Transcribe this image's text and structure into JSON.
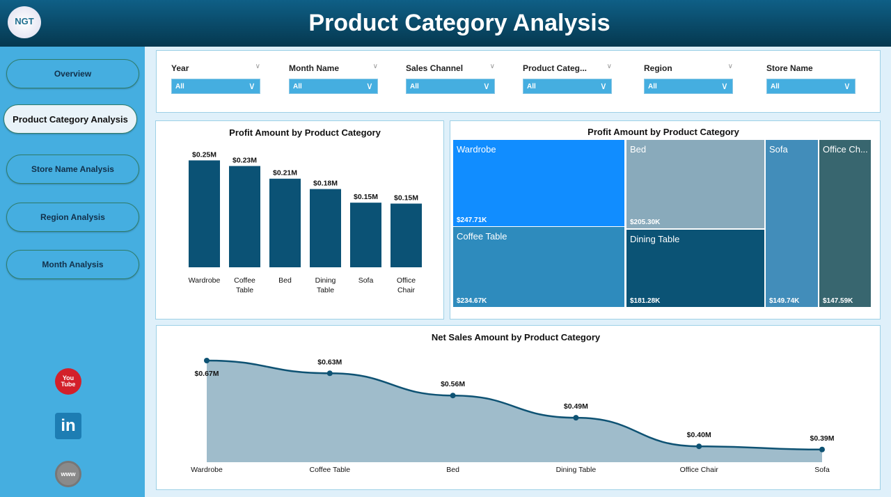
{
  "header": {
    "title": "Product Category Analysis",
    "logo_text": "NGT"
  },
  "sidebar": {
    "items": [
      {
        "label": "Overview",
        "active": false
      },
      {
        "label": "Product Category Analysis",
        "active": true
      },
      {
        "label": "Store Name Analysis",
        "active": false
      },
      {
        "label": "Region Analysis",
        "active": false
      },
      {
        "label": "Month Analysis",
        "active": false
      }
    ],
    "social": [
      {
        "icon": "youtube-icon",
        "text": "You Tube"
      },
      {
        "icon": "linkedin-icon",
        "text": "in"
      },
      {
        "icon": "globe-www-icon",
        "text": "www"
      }
    ]
  },
  "filters": [
    {
      "label": "Year",
      "value": "All"
    },
    {
      "label": "Month Name",
      "value": "All"
    },
    {
      "label": "Sales Channel",
      "value": "All"
    },
    {
      "label": "Product Categ...",
      "value": "All"
    },
    {
      "label": "Region",
      "value": "All"
    },
    {
      "label": "Store Name",
      "value": "All"
    }
  ],
  "colors": {
    "bar": "#0b5275",
    "line": "#0e5273",
    "area": "#9fbccb",
    "accent": "#45aee0"
  },
  "chart_data": [
    {
      "type": "bar",
      "title": "Profit Amount by Product Category",
      "categories": [
        "Wardrobe",
        "Coffee Table",
        "Bed",
        "Dining Table",
        "Sofa",
        "Office Chair"
      ],
      "values": [
        247.71,
        234.67,
        205.3,
        181.28,
        149.74,
        147.59
      ],
      "labels": [
        "$0.25M",
        "$0.23M",
        "$0.21M",
        "$0.18M",
        "$0.15M",
        "$0.15M"
      ],
      "unit": "K"
    },
    {
      "type": "treemap",
      "title": "Profit Amount by Product Category",
      "items": [
        {
          "name": "Wardrobe",
          "value": "$247.71K",
          "color": "#118dff"
        },
        {
          "name": "Coffee Table",
          "value": "$234.67K",
          "color": "#2e8bbd"
        },
        {
          "name": "Bed",
          "value": "$205.30K",
          "color": "#89aabb"
        },
        {
          "name": "Dining Table",
          "value": "$181.28K",
          "color": "#0b5375"
        },
        {
          "name": "Sofa",
          "value": "$149.74K",
          "color": "#428dba"
        },
        {
          "name": "Office Ch...",
          "value": "$147.59K",
          "color": "#38666f"
        }
      ]
    },
    {
      "type": "area",
      "title": "Net Sales Amount by Product Category",
      "categories": [
        "Wardrobe",
        "Coffee Table",
        "Bed",
        "Dining Table",
        "Office Chair",
        "Sofa"
      ],
      "values": [
        0.67,
        0.63,
        0.56,
        0.49,
        0.4,
        0.39
      ],
      "labels": [
        "$0.67M",
        "$0.63M",
        "$0.56M",
        "$0.49M",
        "$0.40M",
        "$0.39M"
      ],
      "unit": "M",
      "ylim": [
        0.35,
        0.67
      ]
    }
  ]
}
